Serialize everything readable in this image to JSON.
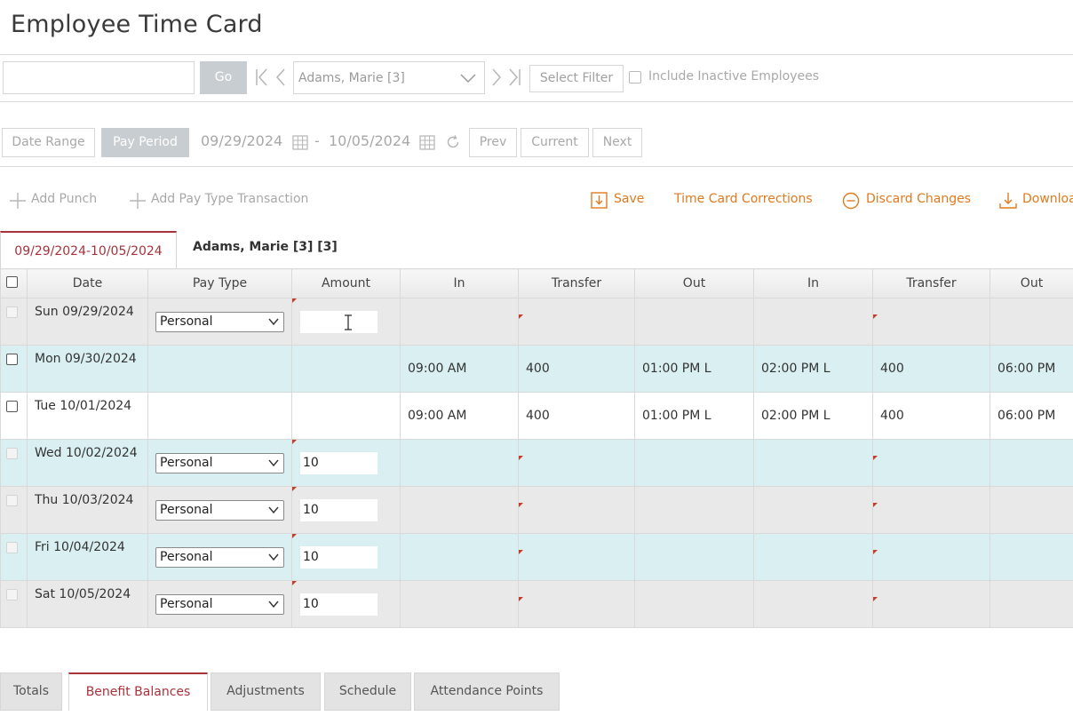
{
  "page": {
    "title": "Employee Time Card"
  },
  "toolbar": {
    "search_value": "",
    "go_label": "Go",
    "employee_selected": "Adams, Marie [3]",
    "select_filter_label": "Select Filter",
    "include_inactive_label": "Include Inactive Employees"
  },
  "period": {
    "date_range_label": "Date Range",
    "pay_period_label": "Pay Period",
    "start_date": "09/29/2024",
    "separator": "-",
    "end_date": "10/05/2024",
    "prev_label": "Prev",
    "current_label": "Current",
    "next_label": "Next"
  },
  "actions": {
    "add_punch": "Add Punch",
    "add_pay_type": "Add Pay Type Transaction",
    "save": "Save",
    "corrections": "Time Card Corrections",
    "discard": "Discard Changes",
    "download": "Downloa"
  },
  "tabs": {
    "active": "09/29/2024-10/05/2024",
    "employee": "Adams, Marie [3] [3]"
  },
  "grid": {
    "columns": [
      "Date",
      "Pay Type",
      "Amount",
      "In",
      "Transfer",
      "Out",
      "In",
      "Transfer",
      "Out"
    ],
    "rows": [
      {
        "date": "Sun 09/29/2024",
        "pay_type": "Personal",
        "amount": "",
        "in1": "",
        "transfer1": "",
        "out1": "",
        "in2": "",
        "transfer2": "",
        "out2": ""
      },
      {
        "date": "Mon 09/30/2024",
        "pay_type": "",
        "amount": "",
        "in1": "09:00 AM",
        "transfer1": "400",
        "out1": "01:00 PM  L",
        "in2": "02:00 PM  L",
        "transfer2": "400",
        "out2": "06:00 PM"
      },
      {
        "date": "Tue 10/01/2024",
        "pay_type": "",
        "amount": "",
        "in1": "09:00 AM",
        "transfer1": "400",
        "out1": "01:00 PM  L",
        "in2": "02:00 PM  L",
        "transfer2": "400",
        "out2": "06:00 PM"
      },
      {
        "date": "Wed 10/02/2024",
        "pay_type": "Personal",
        "amount": "10",
        "in1": "",
        "transfer1": "",
        "out1": "",
        "in2": "",
        "transfer2": "",
        "out2": ""
      },
      {
        "date": "Thu 10/03/2024",
        "pay_type": "Personal",
        "amount": "10",
        "in1": "",
        "transfer1": "",
        "out1": "",
        "in2": "",
        "transfer2": "",
        "out2": ""
      },
      {
        "date": "Fri 10/04/2024",
        "pay_type": "Personal",
        "amount": "10",
        "in1": "",
        "transfer1": "",
        "out1": "",
        "in2": "",
        "transfer2": "",
        "out2": ""
      },
      {
        "date": "Sat 10/05/2024",
        "pay_type": "Personal",
        "amount": "10",
        "in1": "",
        "transfer1": "",
        "out1": "",
        "in2": "",
        "transfer2": "",
        "out2": ""
      }
    ]
  },
  "bottom_tabs": [
    "Totals",
    "Benefit Balances",
    "Adjustments",
    "Schedule",
    "Attendance Points"
  ],
  "colors": {
    "accent": "#a8323a",
    "action_orange": "#e07a1e",
    "row_cyan": "#d9eff1",
    "row_gray": "#e9e9e9"
  },
  "icons": [
    "first-page-icon",
    "prev-icon",
    "chevron-down-icon",
    "next-icon",
    "last-page-icon",
    "calendar-icon",
    "refresh-icon",
    "plus-icon",
    "save-icon",
    "discard-icon",
    "download-icon",
    "text-cursor-icon"
  ]
}
